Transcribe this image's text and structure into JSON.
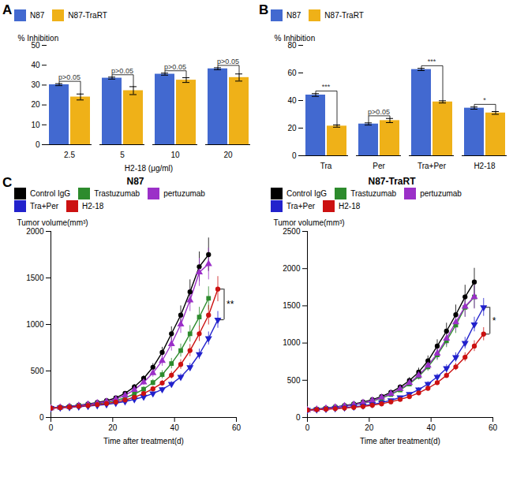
{
  "chart_data": [
    {
      "type": "bar",
      "panel": "A",
      "categories": [
        "2.5",
        "5",
        "10",
        "20"
      ],
      "xlabel": "H2-18 (μg/ml)",
      "ylabel": "% Inhibition",
      "series": [
        {
          "name": "N87",
          "values": [
            30.2,
            33.5,
            35.5,
            38.2
          ],
          "errors": [
            0.5,
            0.5,
            0.5,
            0.5
          ]
        },
        {
          "name": "N87-TraRT",
          "values": [
            24.0,
            27.2,
            32.5,
            33.8
          ],
          "errors": [
            1.5,
            2.0,
            1.2,
            1.8
          ]
        }
      ],
      "ylim": [
        0,
        50
      ],
      "yticks": [
        0,
        10,
        20,
        30,
        40,
        50
      ],
      "legend": "upper left",
      "annotations": [
        "p>0.05",
        "p>0.05",
        "p>0.05",
        "p>0.05"
      ]
    },
    {
      "type": "bar",
      "panel": "B",
      "categories": [
        "Tra",
        "Per",
        "Tra+Per",
        "H2-18"
      ],
      "ylabel": "% Inhibition",
      "series": [
        {
          "name": "N87",
          "values": [
            44.0,
            23.0,
            62.5,
            34.5
          ],
          "errors": [
            1.0,
            0.8,
            0.8,
            0.8
          ]
        },
        {
          "name": "N87-TraRT",
          "values": [
            21.5,
            25.5,
            39.0,
            31.0
          ],
          "errors": [
            0.8,
            1.5,
            0.8,
            1.0
          ]
        }
      ],
      "ylim": [
        0,
        80
      ],
      "yticks": [
        0,
        20,
        40,
        60,
        80
      ],
      "legend": "upper left",
      "annotations": [
        "***",
        "p>0.05",
        "***",
        "*"
      ]
    },
    {
      "type": "line",
      "panel": "C",
      "title": "N87",
      "xlabel": "Time after treatment(d)",
      "ylabel": "Tumor volume(mm³)",
      "x": [
        0,
        3,
        6,
        9,
        12,
        15,
        18,
        21,
        24,
        27,
        30,
        33,
        36,
        39,
        42,
        45,
        48,
        51,
        54
      ],
      "series": [
        {
          "name": "Control IgG",
          "color": "#000000",
          "marker": "circle",
          "values": [
            100,
            110,
            120,
            132,
            145,
            162,
            180,
            210,
            260,
            330,
            420,
            540,
            700,
            900,
            1100,
            1350,
            1620,
            1750,
            null
          ],
          "errors": [
            5,
            6,
            7,
            8,
            9,
            10,
            12,
            14,
            18,
            24,
            30,
            40,
            55,
            75,
            100,
            130,
            160,
            180,
            null
          ]
        },
        {
          "name": "Trastuzumab",
          "color": "#2d8b2d",
          "marker": "square",
          "values": [
            100,
            108,
            116,
            126,
            136,
            148,
            162,
            182,
            210,
            252,
            305,
            375,
            460,
            580,
            720,
            900,
            1080,
            1280,
            null
          ],
          "errors": [
            5,
            6,
            7,
            8,
            9,
            10,
            11,
            13,
            16,
            20,
            26,
            34,
            44,
            56,
            70,
            88,
            105,
            125,
            null
          ]
        },
        {
          "name": "pertuzumab",
          "color": "#9b30c8",
          "marker": "triangle-up",
          "values": [
            100,
            108,
            116,
            128,
            140,
            155,
            172,
            198,
            238,
            298,
            378,
            478,
            610,
            790,
            1000,
            1260,
            1560,
            1650,
            null
          ],
          "errors": [
            5,
            6,
            7,
            8,
            9,
            10,
            12,
            14,
            18,
            25,
            33,
            44,
            58,
            75,
            95,
            120,
            150,
            170,
            null
          ]
        },
        {
          "name": "Tra+Per",
          "color": "#2222cc",
          "marker": "triangle-down",
          "values": [
            100,
            105,
            110,
            116,
            122,
            130,
            140,
            155,
            172,
            195,
            222,
            258,
            302,
            360,
            435,
            540,
            680,
            850,
            1050
          ],
          "errors": [
            5,
            5,
            6,
            7,
            7,
            8,
            9,
            10,
            11,
            13,
            15,
            18,
            22,
            27,
            34,
            42,
            55,
            70,
            90
          ]
        },
        {
          "name": "H2-18",
          "color": "#cc1111",
          "marker": "circle",
          "values": [
            100,
            106,
            112,
            120,
            128,
            138,
            150,
            166,
            188,
            218,
            258,
            308,
            370,
            455,
            570,
            720,
            900,
            1100,
            1380
          ],
          "errors": [
            5,
            5,
            6,
            7,
            7,
            8,
            9,
            10,
            12,
            15,
            19,
            24,
            30,
            40,
            52,
            65,
            82,
            105,
            135
          ]
        }
      ],
      "xlim": [
        0,
        60
      ],
      "xticks": [
        0,
        20,
        40,
        60
      ],
      "ylim": [
        0,
        2000
      ],
      "yticks": [
        0,
        500,
        1000,
        1500,
        2000
      ],
      "legend": "upper left",
      "annotations": [
        {
          "text": "**",
          "series": [
            "Tra+Per",
            "H2-18"
          ]
        }
      ]
    },
    {
      "type": "line",
      "title": "N87-TraRT",
      "xlabel": "Time after treatment(d)",
      "ylabel": "Tumor volume(mm³)",
      "x": [
        0,
        3,
        6,
        9,
        12,
        15,
        18,
        21,
        24,
        27,
        30,
        33,
        36,
        39,
        42,
        45,
        48,
        51,
        54,
        57
      ],
      "series": [
        {
          "name": "Control IgG",
          "color": "#000000",
          "marker": "circle",
          "values": [
            100,
            112,
            126,
            142,
            160,
            182,
            208,
            240,
            282,
            338,
            408,
            495,
            610,
            760,
            960,
            1160,
            1380,
            1620,
            1820,
            null
          ],
          "errors": [
            5,
            7,
            8,
            9,
            10,
            12,
            14,
            17,
            21,
            26,
            33,
            42,
            54,
            68,
            85,
            108,
            132,
            158,
            185,
            null
          ]
        },
        {
          "name": "Trastuzumab",
          "color": "#2d8b2d",
          "marker": "square",
          "values": [
            100,
            110,
            122,
            136,
            152,
            170,
            192,
            220,
            258,
            308,
            370,
            450,
            552,
            680,
            840,
            1030,
            1240,
            1480,
            1620,
            null
          ],
          "errors": [
            5,
            6,
            7,
            8,
            9,
            10,
            12,
            14,
            17,
            22,
            28,
            36,
            46,
            58,
            72,
            90,
            110,
            132,
            155,
            null
          ]
        },
        {
          "name": "pertuzumab",
          "color": "#9b30c8",
          "marker": "triangle-up",
          "values": [
            100,
            110,
            122,
            137,
            154,
            174,
            198,
            228,
            268,
            320,
            384,
            464,
            566,
            698,
            860,
            1060,
            1280,
            1490,
            1620,
            null
          ],
          "errors": [
            5,
            6,
            7,
            8,
            9,
            10,
            12,
            14,
            18,
            23,
            30,
            38,
            50,
            62,
            78,
            96,
            118,
            142,
            162,
            null
          ]
        },
        {
          "name": "Tra+Per",
          "color": "#2222cc",
          "marker": "triangle-down",
          "values": [
            100,
            106,
            113,
            122,
            132,
            144,
            158,
            176,
            200,
            230,
            268,
            315,
            375,
            450,
            545,
            660,
            808,
            1000,
            1250,
            1480
          ],
          "errors": [
            5,
            5,
            6,
            7,
            7,
            8,
            9,
            10,
            12,
            14,
            17,
            21,
            26,
            32,
            40,
            50,
            62,
            78,
            98,
            120
          ]
        },
        {
          "name": "H2-18",
          "color": "#cc1111",
          "marker": "circle",
          "values": [
            100,
            105,
            111,
            118,
            126,
            136,
            148,
            164,
            184,
            210,
            242,
            280,
            330,
            392,
            468,
            565,
            680,
            810,
            960,
            1120
          ],
          "errors": [
            5,
            5,
            5,
            6,
            6,
            7,
            8,
            9,
            10,
            12,
            14,
            17,
            20,
            25,
            30,
            38,
            48,
            60,
            72,
            88
          ]
        }
      ],
      "xlim": [
        0,
        60
      ],
      "xticks": [
        0,
        20,
        40,
        60
      ],
      "ylim": [
        0,
        2500
      ],
      "yticks": [
        0,
        500,
        1000,
        1500,
        2000,
        2500
      ],
      "legend": "upper left",
      "annotations": [
        {
          "text": "*",
          "series": [
            "Tra+Per",
            "H2-18"
          ]
        }
      ]
    }
  ]
}
